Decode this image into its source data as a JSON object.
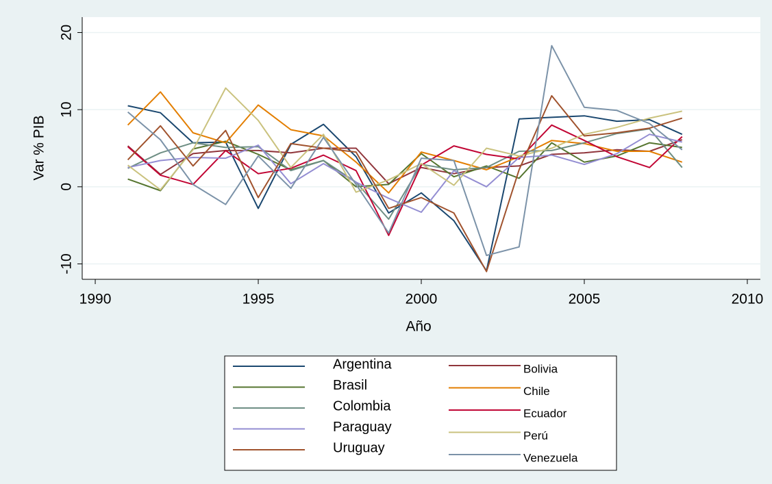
{
  "chart_data": {
    "type": "line",
    "x_label": "Año",
    "y_label": "Var % PIB",
    "x": [
      1991,
      1992,
      1993,
      1994,
      1995,
      1996,
      1997,
      1998,
      1999,
      2000,
      2001,
      2002,
      2003,
      2004,
      2005,
      2006,
      2007,
      2008
    ],
    "xlim": [
      1989.6,
      2010.4
    ],
    "xticks": [
      1990,
      1995,
      2000,
      2005,
      2010
    ],
    "ylim": [
      -12,
      22
    ],
    "yticks": [
      -10,
      0,
      10,
      20
    ],
    "grid": true,
    "series": [
      {
        "name": "Argentina",
        "color": "#1a476f",
        "values": [
          10.5,
          9.6,
          5.7,
          5.8,
          -2.8,
          5.5,
          8.1,
          3.9,
          -3.4,
          -0.8,
          -4.4,
          -10.9,
          8.8,
          9.0,
          9.2,
          8.5,
          8.7,
          6.8
        ]
      },
      {
        "name": "Bolivia",
        "color": "#90353b",
        "values": [
          5.3,
          1.6,
          4.3,
          4.7,
          4.7,
          4.4,
          5.0,
          5.0,
          0.4,
          2.5,
          1.7,
          2.5,
          2.7,
          4.2,
          4.4,
          4.8,
          4.6,
          6.1
        ]
      },
      {
        "name": "Brasil",
        "color": "#55752f",
        "values": [
          1.0,
          -0.5,
          4.9,
          5.9,
          4.2,
          2.2,
          3.4,
          0.0,
          0.3,
          4.3,
          1.3,
          2.7,
          1.1,
          5.7,
          3.2,
          4.0,
          5.7,
          5.1
        ]
      },
      {
        "name": "Chile",
        "color": "#e37e00",
        "values": [
          8.0,
          12.3,
          7.0,
          5.7,
          10.6,
          7.4,
          6.6,
          3.2,
          -0.8,
          4.5,
          3.4,
          2.2,
          3.9,
          6.0,
          5.6,
          4.6,
          4.6,
          3.2
        ]
      },
      {
        "name": "Colombia",
        "color": "#6e8e84",
        "values": [
          2.4,
          4.4,
          5.7,
          5.1,
          5.2,
          2.1,
          3.4,
          0.6,
          -4.2,
          2.9,
          2.2,
          2.5,
          4.6,
          4.7,
          5.7,
          6.9,
          7.5,
          2.5
        ]
      },
      {
        "name": "Ecuador",
        "color": "#c10534",
        "values": [
          5.2,
          1.5,
          0.3,
          4.7,
          1.7,
          2.4,
          4.1,
          2.1,
          -6.3,
          2.8,
          5.3,
          4.2,
          3.6,
          8.0,
          6.0,
          3.9,
          2.5,
          6.5
        ]
      },
      {
        "name": "Paraguay",
        "color": "#938dd2",
        "values": [
          2.5,
          3.4,
          3.8,
          3.7,
          5.4,
          0.4,
          3.0,
          0.6,
          -1.5,
          -3.3,
          2.1,
          0.0,
          3.8,
          4.1,
          2.9,
          4.3,
          6.8,
          5.8
        ]
      },
      {
        "name": "Perú",
        "color": "#cac27e",
        "values": [
          2.8,
          -0.4,
          4.8,
          12.8,
          8.6,
          2.5,
          6.8,
          -0.7,
          0.9,
          3.0,
          0.2,
          5.0,
          4.0,
          5.0,
          6.8,
          7.7,
          8.9,
          9.8
        ]
      },
      {
        "name": "Uruguay",
        "color": "#a0522d",
        "values": [
          3.5,
          7.9,
          2.7,
          7.3,
          -1.4,
          5.6,
          5.0,
          4.5,
          -2.8,
          -1.4,
          -3.4,
          -11.0,
          2.2,
          11.8,
          6.6,
          7.0,
          7.6,
          8.9
        ]
      },
      {
        "name": "Venezuela",
        "color": "#7b92a8",
        "values": [
          9.7,
          6.1,
          0.3,
          -2.3,
          4.0,
          -0.2,
          6.4,
          0.3,
          -6.0,
          3.7,
          3.4,
          -8.9,
          -7.8,
          18.3,
          10.3,
          9.9,
          8.2,
          4.8
        ]
      }
    ]
  }
}
